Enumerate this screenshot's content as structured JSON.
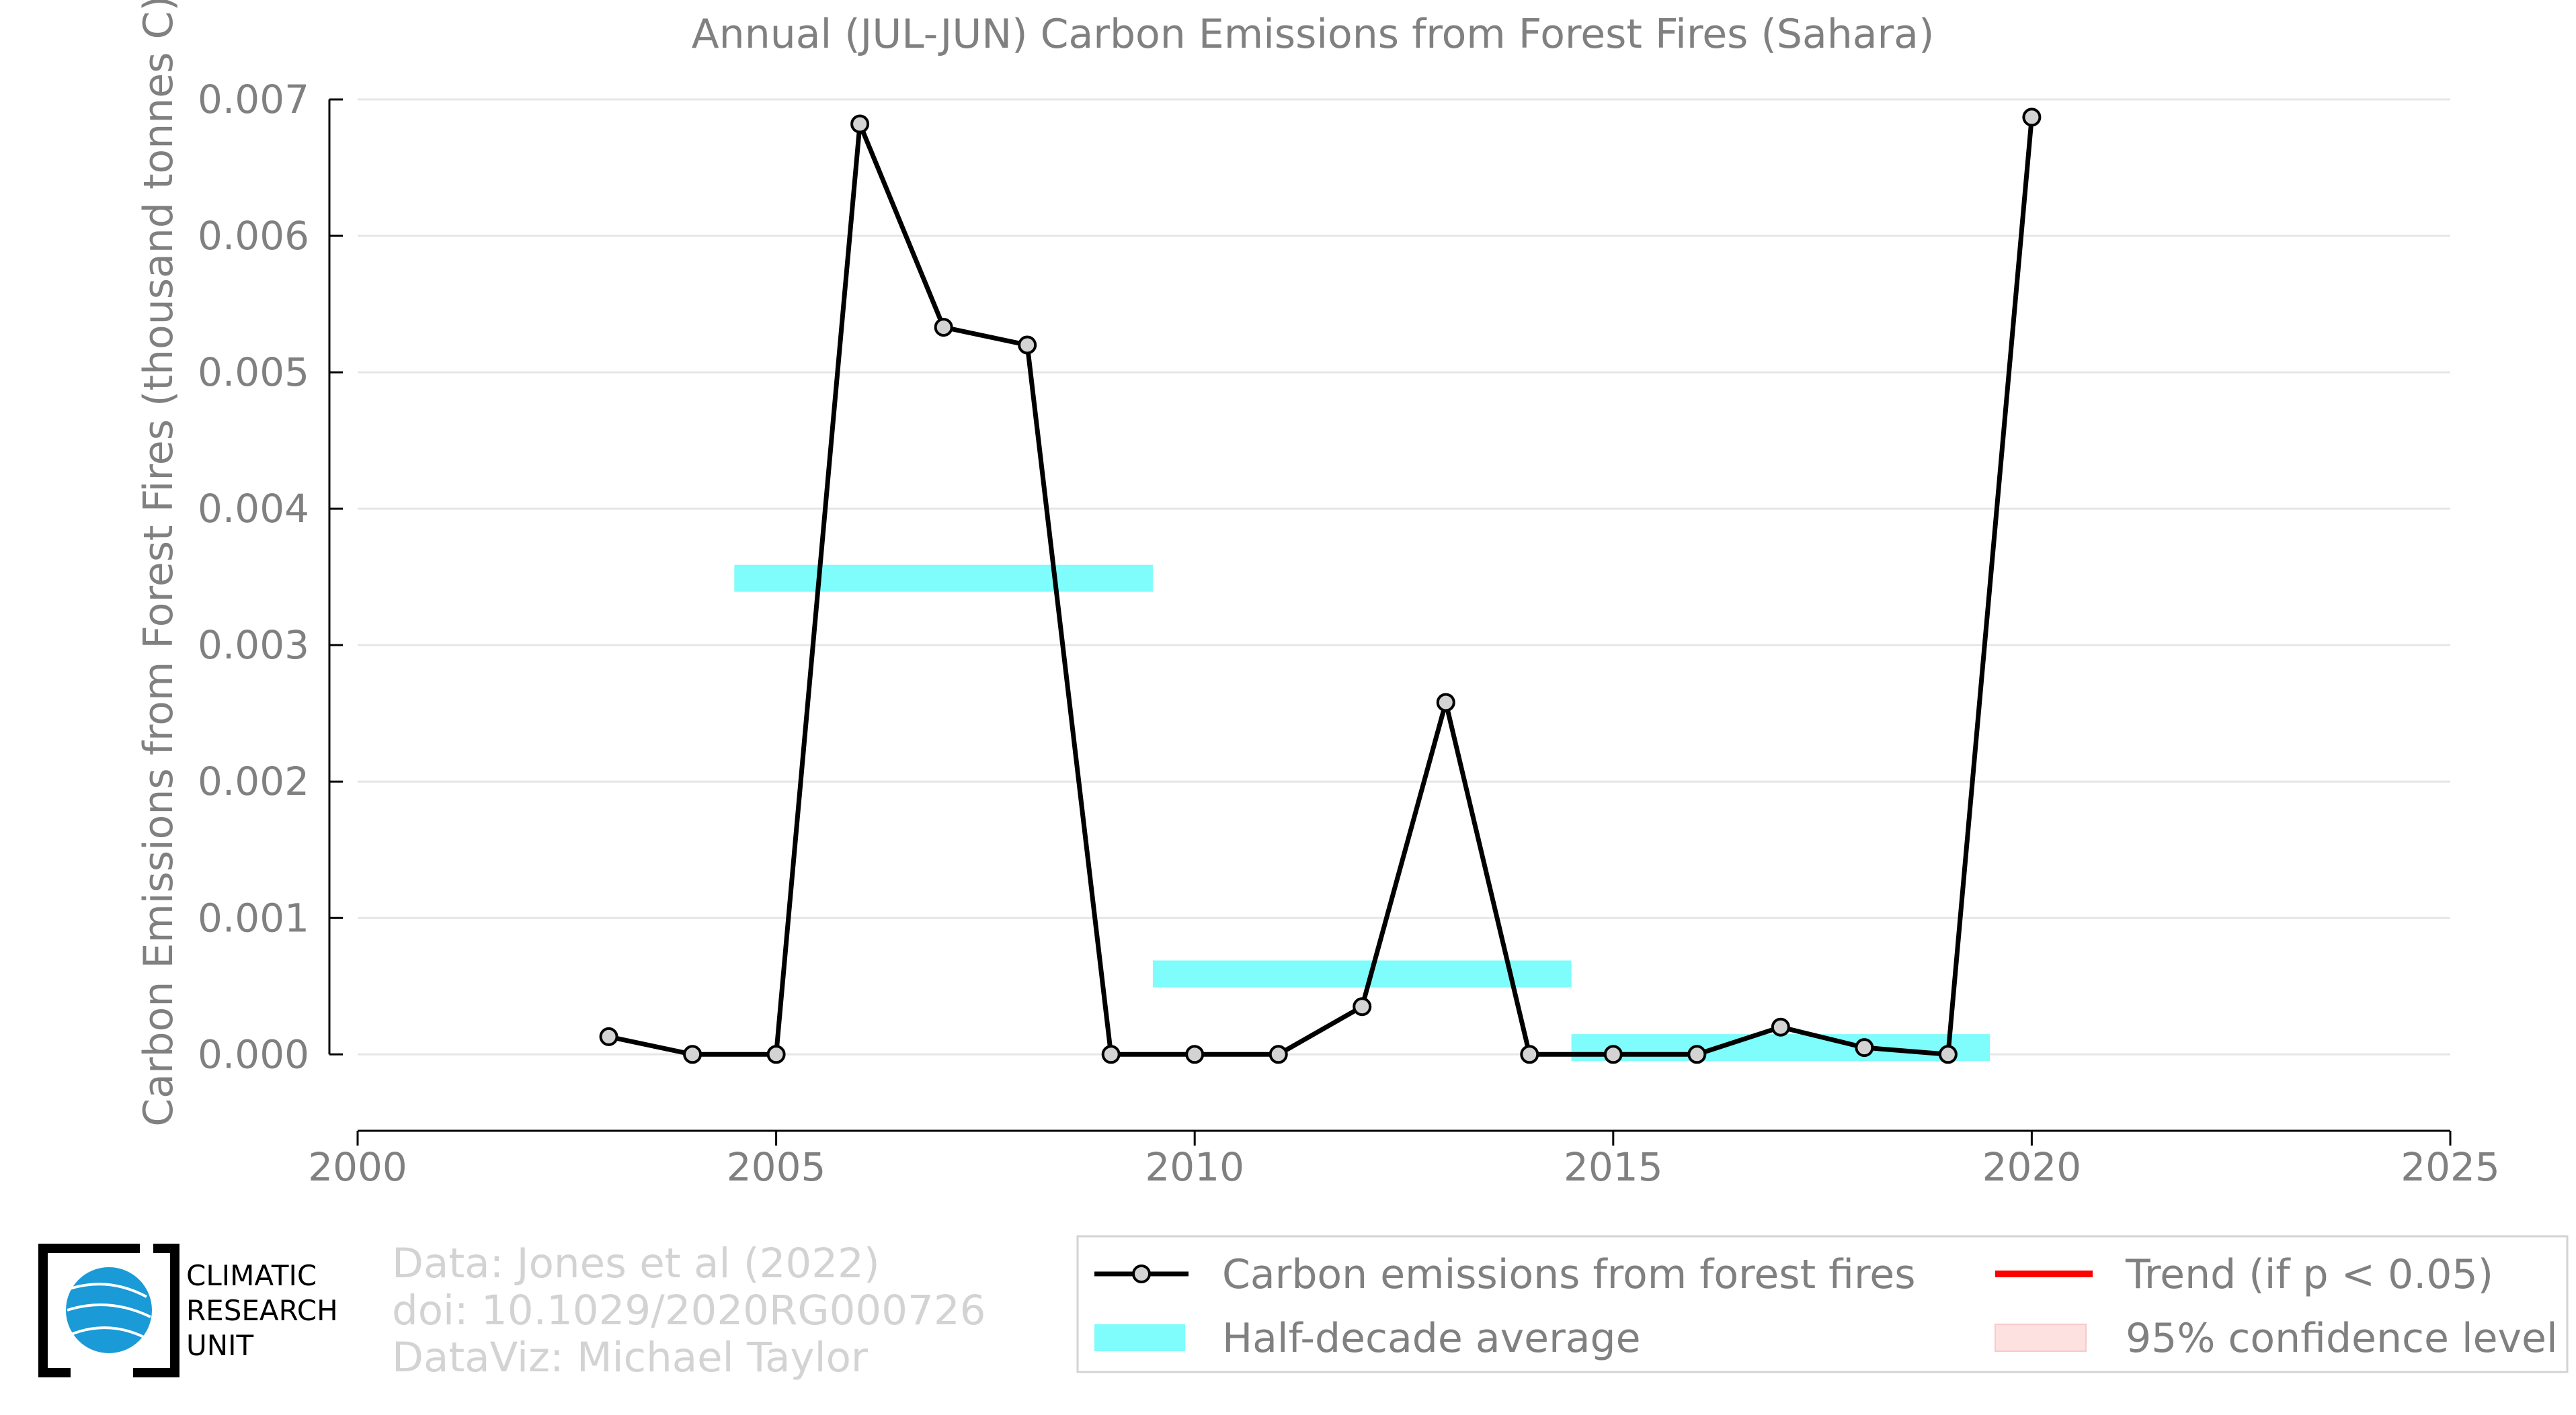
{
  "chart_data": {
    "type": "line",
    "title": "Annual (JUL-JUN) Carbon Emissions from Forest Fires (Sahara)",
    "ylabel": "Carbon Emissions from Forest Fires (thousand tonnes C)",
    "xlabel": "",
    "xlim": [
      2000,
      2025
    ],
    "ylim": [
      -0.00056,
      0.007
    ],
    "xticks": [
      "2000",
      "2005",
      "2010",
      "2015",
      "2020",
      "2025"
    ],
    "xtick_values": [
      2000,
      2005,
      2010,
      2015,
      2020,
      2025
    ],
    "yticks": [
      "0.000",
      "0.001",
      "0.002",
      "0.003",
      "0.004",
      "0.005",
      "0.006",
      "0.007"
    ],
    "ytick_values": [
      0,
      0.001,
      0.002,
      0.003,
      0.004,
      0.005,
      0.006,
      0.007
    ],
    "grid": "horizontal",
    "series": [
      {
        "name": "Carbon emissions from forest fires",
        "color": "#000000",
        "marker_fill": "#d3d3d3",
        "x": [
          2003,
          2004,
          2005,
          2006,
          2007,
          2008,
          2009,
          2010,
          2011,
          2012,
          2013,
          2014,
          2015,
          2016,
          2017,
          2018,
          2019,
          2020
        ],
        "y": [
          0.00013,
          0.0,
          0.0,
          0.00682,
          0.00533,
          0.0052,
          0.0,
          0.0,
          0.0,
          0.00035,
          0.00258,
          0.0,
          0.0,
          0.0,
          0.0002,
          5e-05,
          0.0,
          0.00687
        ]
      },
      {
        "name": "Half-decade average",
        "color": "#7ffcfc",
        "segments": [
          {
            "x_start": 2004.5,
            "x_end": 2009.5,
            "y": 0.00349
          },
          {
            "x_start": 2009.5,
            "x_end": 2014.5,
            "y": 0.00059
          },
          {
            "x_start": 2014.5,
            "x_end": 2019.5,
            "y": 5e-05
          }
        ]
      }
    ],
    "legend": {
      "position": "bottom-right",
      "entries": [
        {
          "label": "Carbon emissions from forest fires",
          "kind": "line-marker",
          "color": "#000000"
        },
        {
          "label": "Trend (if p < 0.05)",
          "kind": "line",
          "color": "#ff0000"
        },
        {
          "label": "Half-decade average",
          "kind": "band",
          "color": "#7ffcfc"
        },
        {
          "label": "95% confidence level",
          "kind": "band",
          "color": "#fde0e0"
        }
      ]
    }
  },
  "credits": {
    "line1": "Data: Jones et al (2022)",
    "line2": "doi: 10.1029/2020RG000726",
    "line3": "DataViz: Michael Taylor"
  },
  "logo": {
    "line1": "CLIMATIC",
    "line2": "RESEARCH",
    "line3": "UNIT",
    "globe_color": "#1a9ad6"
  }
}
